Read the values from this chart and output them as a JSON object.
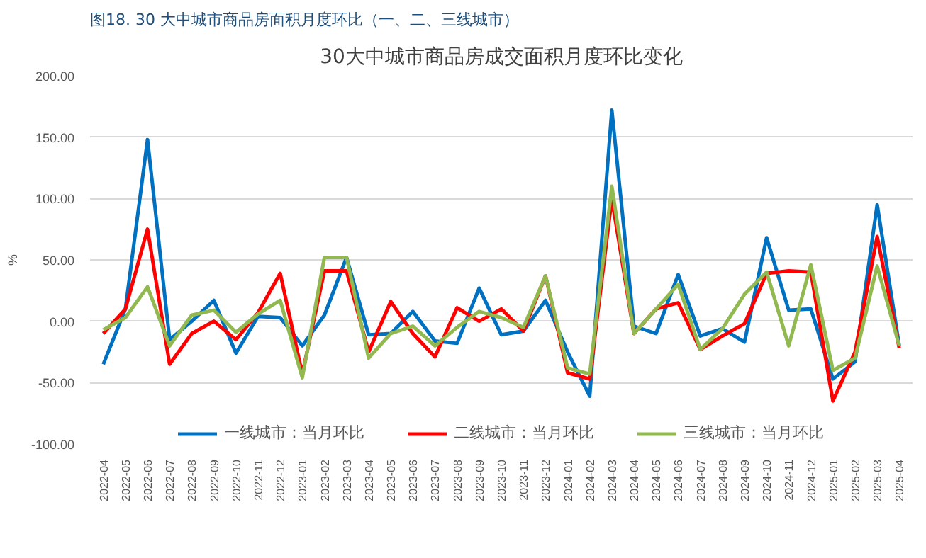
{
  "chart_data": {
    "type": "line",
    "title": "30大中城市商品房成交面积月度环比变化",
    "annotations": [
      "图18.  30 大中城市商品房面积月度环比（一、二、三线城市）"
    ],
    "ylabel": "%",
    "categories": [
      "2022-04",
      "2022-05",
      "2022-06",
      "2022-07",
      "2022-08",
      "2022-09",
      "2022-10",
      "2022-11",
      "2022-12",
      "2023-01",
      "2023-02",
      "2023-03",
      "2023-04",
      "2023-05",
      "2023-06",
      "2023-07",
      "2023-08",
      "2023-09",
      "2023-10",
      "2023-11",
      "2023-12",
      "2024-01",
      "2024-02",
      "2024-03",
      "2024-04",
      "2024-05",
      "2024-06",
      "2024-07",
      "2024-08",
      "2024-09",
      "2024-10",
      "2024-11",
      "2024-12",
      "2025-01",
      "2025-02",
      "2025-03",
      "2025-04"
    ],
    "series": [
      {
        "name": "一线城市：当月环比",
        "color": "#0070c0",
        "values": [
          -35,
          10,
          148,
          -15,
          0,
          17,
          -26,
          4,
          3,
          -20,
          5,
          52,
          -11,
          -10,
          8,
          -16,
          -18,
          27,
          -11,
          -8,
          17,
          -25,
          -61,
          172,
          -4,
          -10,
          38,
          -12,
          -6,
          -17,
          68,
          9,
          10,
          -47,
          -33,
          95,
          -20
        ]
      },
      {
        "name": "二线城市：当月环比",
        "color": "#ff0000",
        "values": [
          -10,
          10,
          75,
          -35,
          -10,
          0,
          -15,
          7,
          39,
          -43,
          41,
          41,
          -25,
          16,
          -10,
          -29,
          11,
          0,
          10,
          -8,
          37,
          -42,
          -47,
          100,
          -10,
          10,
          15,
          -23,
          -12,
          -2,
          39,
          41,
          40,
          -65,
          -25,
          69,
          -22
        ]
      },
      {
        "name": "三线城市：当月环比",
        "color": "#92b850",
        "values": [
          -7,
          3,
          28,
          -20,
          5,
          9,
          -9,
          6,
          17,
          -46,
          52,
          52,
          -30,
          -10,
          -4,
          -20,
          -5,
          8,
          3,
          -5,
          37,
          -38,
          -43,
          110,
          -10,
          10,
          30,
          -23,
          -6,
          22,
          40,
          -20,
          46,
          -40,
          -30,
          45,
          -20
        ]
      }
    ],
    "ylim": [
      -100,
      200
    ],
    "yticks": [
      {
        "value": -100,
        "label": "-100.00"
      },
      {
        "value": -50,
        "label": "-50.00"
      },
      {
        "value": 0,
        "label": "0.00"
      },
      {
        "value": 50,
        "label": "50.00"
      },
      {
        "value": 100,
        "label": "100.00"
      },
      {
        "value": 150,
        "label": "150.00"
      },
      {
        "value": 200,
        "label": "200.00"
      }
    ],
    "grid": "y",
    "legend": "bottom",
    "marker": "none",
    "line_style": "solid"
  }
}
